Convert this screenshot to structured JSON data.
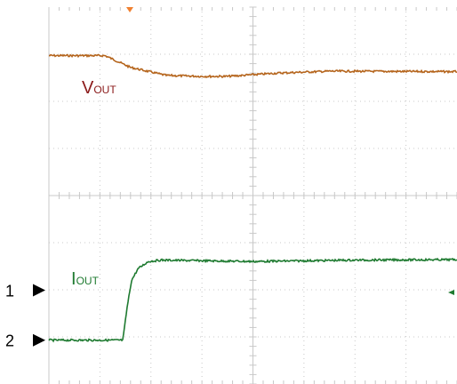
{
  "chart_data": {
    "type": "line",
    "grid": true,
    "x_divisions": 8,
    "y_divisions": 8,
    "ylim": [
      0,
      8
    ],
    "series": [
      {
        "name": "VOUT",
        "label_main": "V",
        "label_sub": "OUT",
        "color": "#b5651d",
        "label_color": "#8b1a1a",
        "points": [
          [
            0,
            6.97
          ],
          [
            1.1,
            6.97
          ],
          [
            1.6,
            6.72
          ],
          [
            2.3,
            6.55
          ],
          [
            3.0,
            6.53
          ],
          [
            3.5,
            6.53
          ],
          [
            4.5,
            6.6
          ],
          [
            5.5,
            6.64
          ],
          [
            8,
            6.63
          ]
        ]
      },
      {
        "name": "IOUT",
        "label_main": "I",
        "label_sub": "OUT",
        "color": "#1e7a30",
        "label_color": "#1e7a30",
        "points": [
          [
            0,
            0.93
          ],
          [
            1.45,
            0.93
          ],
          [
            1.53,
            1.6
          ],
          [
            1.62,
            2.2
          ],
          [
            1.75,
            2.45
          ],
          [
            1.95,
            2.6
          ],
          [
            2.2,
            2.63
          ],
          [
            4,
            2.6
          ],
          [
            6,
            2.63
          ],
          [
            8,
            2.64
          ]
        ]
      }
    ],
    "channel_markers": [
      {
        "label": "1",
        "level": 1.99
      },
      {
        "label": "2",
        "level": 0.93
      }
    ]
  }
}
